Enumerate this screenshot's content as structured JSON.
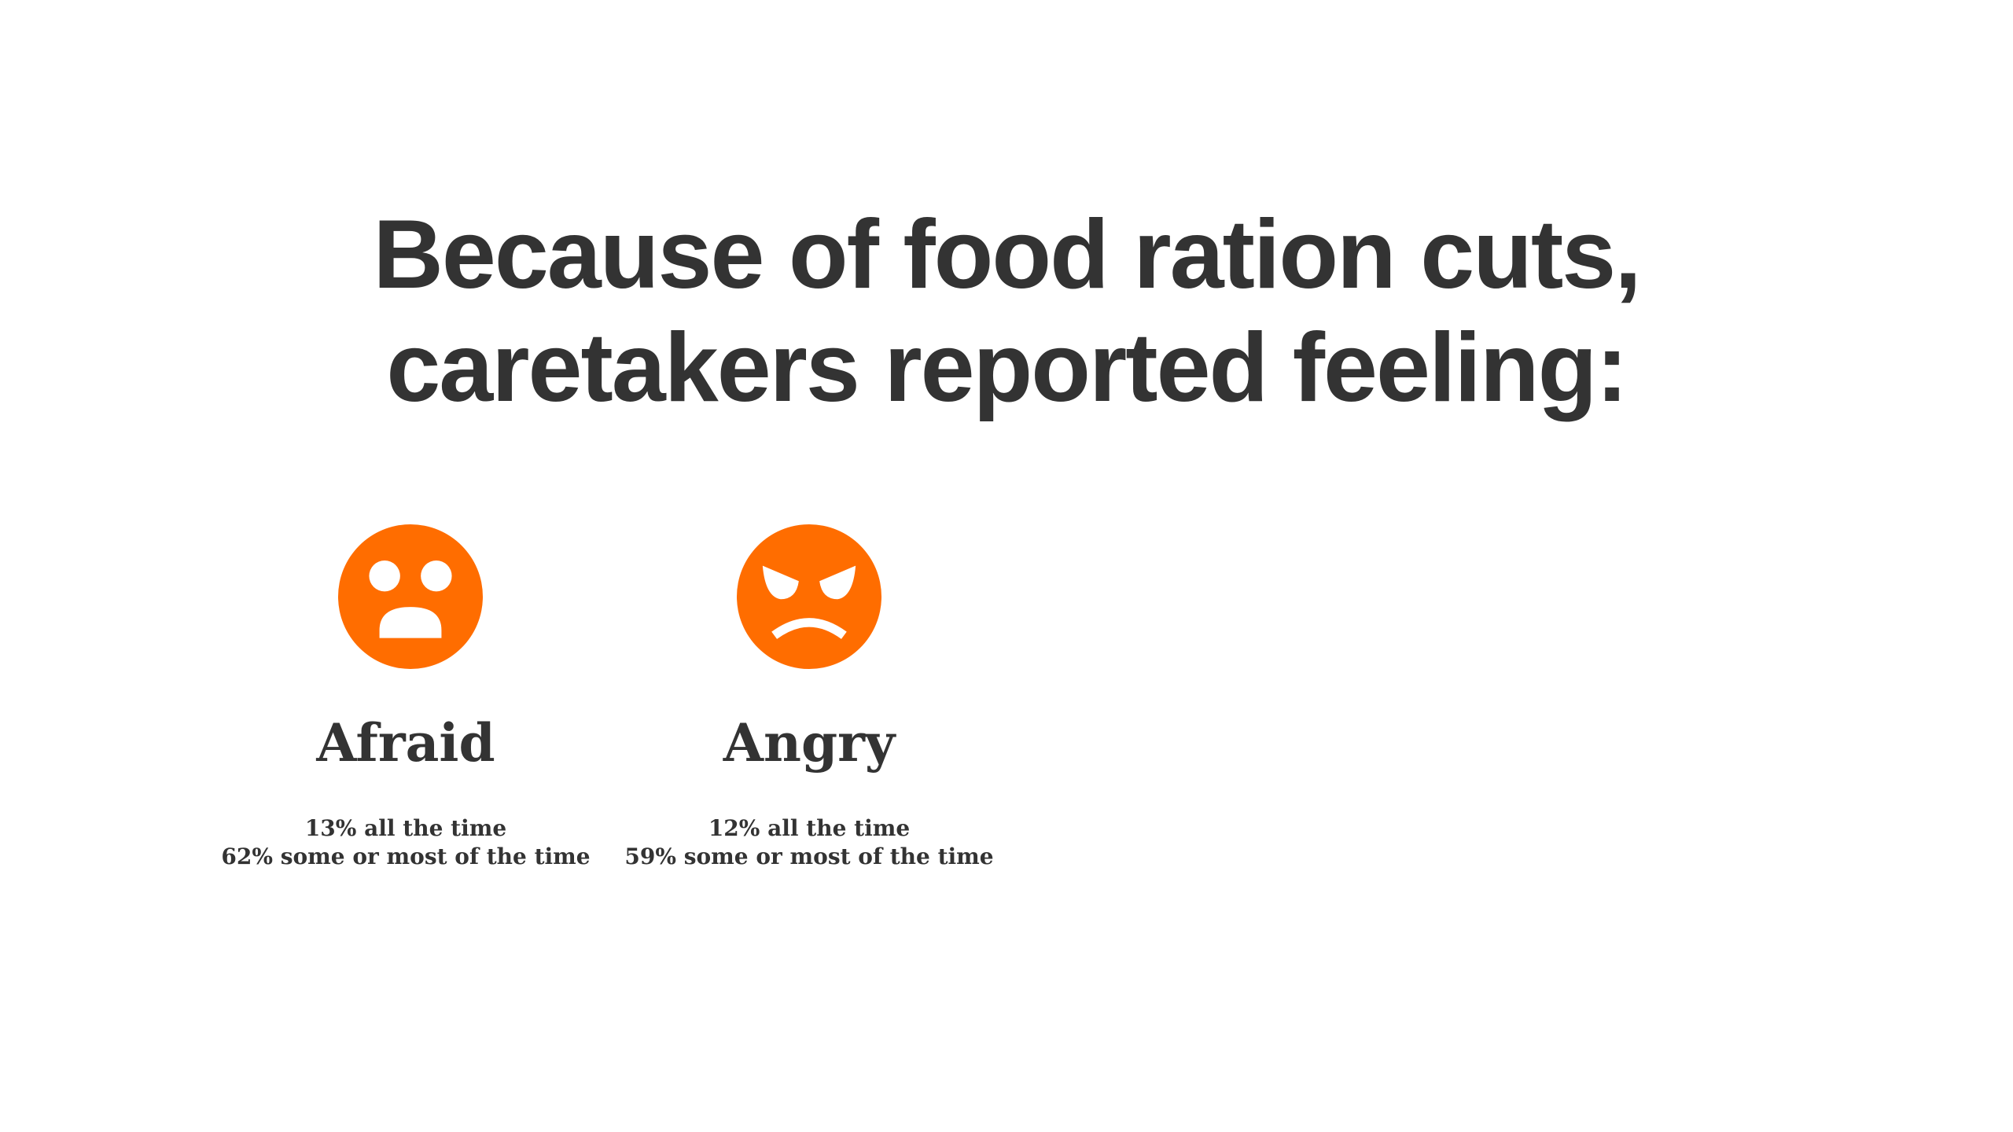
{
  "title_lines": [
    "Because of food ration cuts,",
    "caretakers reported feeling:"
  ],
  "items": [
    {
      "label": "Afraid",
      "stats": [
        "13% all the time",
        "62% some or most of the time"
      ]
    },
    {
      "label": "Angry",
      "stats": [
        "12% all the time",
        "59% some or most of the time"
      ]
    }
  ]
}
